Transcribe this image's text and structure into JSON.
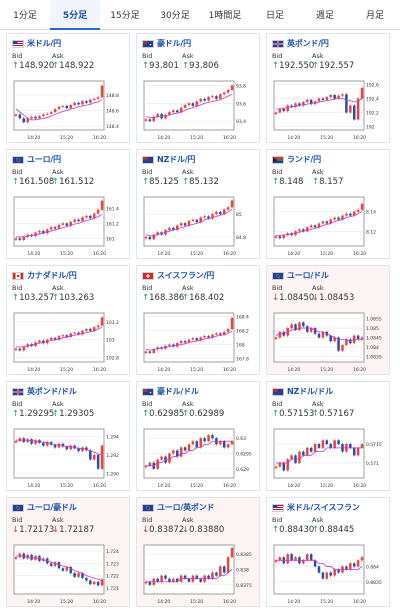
{
  "tabs": [
    "1分足",
    "5分足",
    "15分足",
    "30分足",
    "1時間足",
    "日足",
    "週足",
    "月足"
  ],
  "active_tab": 1,
  "labels": {
    "bid": "Bid",
    "ask": "Ask"
  },
  "arrows": {
    "up": "↑",
    "down": "↓"
  },
  "colors": {
    "up_candle": "#e8453c",
    "down_candle": "#2a4ea8",
    "ma_line": "#cc33cc",
    "active_tab": "#2a66d4"
  },
  "cards": [
    {
      "flag": "us",
      "pair": "米ドル/円",
      "dir": "up",
      "bid": "148.920",
      "ask": "148.922",
      "chart_data": {
        "type": "candlestick",
        "x_ticks": [
          "14:20",
          "15:20",
          "16:20"
        ],
        "y_ticks": [
          "148.8",
          "148.6",
          "148.4"
        ],
        "ylim": [
          148.35,
          148.98
        ],
        "closes": [
          148.55,
          148.5,
          148.45,
          148.5,
          148.52,
          148.5,
          148.53,
          148.55,
          148.56,
          148.58,
          148.62,
          148.65,
          148.66,
          148.63,
          148.67,
          148.7,
          148.68,
          148.72,
          148.7,
          148.74,
          148.75,
          148.77,
          148.92
        ],
        "ma": [
          148.62,
          148.58,
          148.54,
          148.5,
          148.48,
          148.48,
          148.49,
          148.5,
          148.51,
          148.53,
          148.55,
          148.57,
          148.59,
          148.6,
          148.62,
          148.63,
          148.65,
          148.66,
          148.67,
          148.68,
          148.7,
          148.71,
          148.74
        ]
      }
    },
    {
      "flag": "au",
      "pair": "豪ドル/円",
      "dir": "up",
      "bid": "93.801",
      "ask": "93.806",
      "chart_data": {
        "type": "candlestick",
        "x_ticks": [
          "14:20",
          "15:20",
          "16:20"
        ],
        "y_ticks": [
          "93.8",
          "93.6",
          "93.4"
        ],
        "ylim": [
          93.3,
          93.85
        ],
        "closes": [
          93.42,
          93.4,
          93.45,
          93.48,
          93.43,
          93.47,
          93.5,
          93.52,
          93.5,
          93.55,
          93.58,
          93.6,
          93.57,
          93.62,
          93.65,
          93.63,
          93.67,
          93.68,
          93.65,
          93.7,
          93.72,
          93.75,
          93.8
        ],
        "ma": [
          93.45,
          93.44,
          93.44,
          93.45,
          93.45,
          93.46,
          93.47,
          93.48,
          93.49,
          93.5,
          93.52,
          93.54,
          93.55,
          93.57,
          93.58,
          93.6,
          93.61,
          93.62,
          93.63,
          93.64,
          93.66,
          93.68,
          93.7
        ]
      }
    },
    {
      "flag": "gb",
      "pair": "英ポンド/円",
      "dir": "up",
      "bid": "192.550",
      "ask": "192.557",
      "chart_data": {
        "type": "candlestick",
        "x_ticks": [
          "14:20",
          "15:20",
          "16:20"
        ],
        "y_ticks": [
          "192.6",
          "192.4",
          "192.2",
          "192"
        ],
        "ylim": [
          191.95,
          192.65
        ],
        "closes": [
          192.2,
          192.25,
          192.22,
          192.3,
          192.28,
          192.33,
          192.3,
          192.35,
          192.38,
          192.32,
          192.36,
          192.4,
          192.38,
          192.42,
          192.45,
          192.4,
          192.44,
          192.46,
          192.2,
          192.3,
          192.1,
          192.4,
          192.55
        ],
        "ma": [
          192.25,
          192.25,
          192.26,
          192.27,
          192.28,
          192.29,
          192.3,
          192.31,
          192.32,
          192.33,
          192.34,
          192.35,
          192.36,
          192.37,
          192.38,
          192.39,
          192.4,
          192.4,
          192.38,
          192.37,
          192.35,
          192.36,
          192.4
        ]
      }
    },
    {
      "flag": "eu",
      "pair": "ユーロ/円",
      "dir": "up",
      "bid": "161.508",
      "ask": "161.512",
      "chart_data": {
        "type": "candlestick",
        "x_ticks": [
          "14:20",
          "15:20",
          "16:20"
        ],
        "y_ticks": [
          "161.4",
          "161.2",
          "161"
        ],
        "ylim": [
          160.9,
          161.55
        ],
        "closes": [
          161.0,
          160.98,
          161.02,
          161.05,
          161.03,
          161.08,
          161.1,
          161.07,
          161.12,
          161.15,
          161.13,
          161.18,
          161.2,
          161.17,
          161.22,
          161.25,
          161.23,
          161.28,
          161.3,
          161.27,
          161.33,
          161.38,
          161.5
        ],
        "ma": [
          161.02,
          161.02,
          161.02,
          161.03,
          161.04,
          161.05,
          161.06,
          161.07,
          161.08,
          161.1,
          161.11,
          161.13,
          161.14,
          161.16,
          161.17,
          161.19,
          161.2,
          161.22,
          161.24,
          161.25,
          161.27,
          161.29,
          161.32
        ]
      }
    },
    {
      "flag": "nz",
      "pair": "NZドル/円",
      "dir": "up",
      "bid": "85.125",
      "ask": "85.132",
      "chart_data": {
        "type": "candlestick",
        "x_ticks": [
          "14:20",
          "15:20",
          "16:20"
        ],
        "y_ticks": [
          "85",
          "84.8"
        ],
        "ylim": [
          84.72,
          85.15
        ],
        "closes": [
          84.8,
          84.78,
          84.82,
          84.84,
          84.82,
          84.86,
          84.88,
          84.86,
          84.9,
          84.92,
          84.9,
          84.94,
          84.95,
          84.93,
          84.97,
          84.98,
          84.96,
          85.0,
          85.02,
          85.0,
          85.04,
          85.06,
          85.12
        ],
        "ma": [
          84.82,
          84.81,
          84.81,
          84.82,
          84.83,
          84.84,
          84.85,
          84.86,
          84.87,
          84.88,
          84.89,
          84.9,
          84.91,
          84.92,
          84.93,
          84.95,
          84.96,
          84.97,
          84.98,
          84.99,
          85.0,
          85.02,
          85.04
        ]
      }
    },
    {
      "flag": "za",
      "pair": "ランド/円",
      "dir": "up",
      "bid": "8.148",
      "ask": "8.157",
      "chart_data": {
        "type": "candlestick",
        "x_ticks": [
          "14:20",
          "15:20",
          "16:20"
        ],
        "y_ticks": [
          "8.14",
          "8.12"
        ],
        "ylim": [
          8.105,
          8.155
        ],
        "closes": [
          8.115,
          8.113,
          8.116,
          8.118,
          8.116,
          8.12,
          8.122,
          8.12,
          8.124,
          8.126,
          8.124,
          8.128,
          8.13,
          8.128,
          8.132,
          8.134,
          8.132,
          8.136,
          8.138,
          8.136,
          8.14,
          8.142,
          8.148
        ],
        "ma": [
          8.116,
          8.116,
          8.116,
          8.117,
          8.117,
          8.118,
          8.119,
          8.12,
          8.121,
          8.122,
          8.123,
          8.124,
          8.126,
          8.127,
          8.128,
          8.13,
          8.131,
          8.132,
          8.134,
          8.135,
          8.136,
          8.138,
          8.14
        ]
      }
    },
    {
      "flag": "ca",
      "pair": "カナダドル/円",
      "dir": "up",
      "bid": "103.257",
      "ask": "103.263",
      "chart_data": {
        "type": "candlestick",
        "x_ticks": [
          "14:20",
          "15:20",
          "16:20"
        ],
        "y_ticks": [
          "103.2",
          "103",
          "102.8"
        ],
        "ylim": [
          102.75,
          103.3
        ],
        "closes": [
          102.9,
          102.88,
          102.92,
          102.95,
          102.93,
          102.97,
          102.99,
          102.96,
          103.0,
          103.02,
          103.0,
          103.04,
          103.05,
          103.03,
          103.07,
          103.08,
          103.06,
          103.1,
          103.12,
          103.1,
          103.14,
          103.16,
          103.25
        ],
        "ma": [
          102.92,
          102.92,
          102.92,
          102.93,
          102.94,
          102.95,
          102.96,
          102.97,
          102.98,
          102.99,
          103.0,
          103.01,
          103.02,
          103.03,
          103.04,
          103.05,
          103.06,
          103.07,
          103.08,
          103.09,
          103.1,
          103.12,
          103.14
        ]
      }
    },
    {
      "flag": "ch",
      "pair": "スイスフラン/円",
      "dir": "up",
      "bid": "168.386",
      "ask": "168.402",
      "chart_data": {
        "type": "candlestick",
        "x_ticks": [
          "14:20",
          "15:20",
          "16:20"
        ],
        "y_ticks": [
          "168.4",
          "168.2",
          "168",
          "167.8"
        ],
        "ylim": [
          167.75,
          168.45
        ],
        "closes": [
          167.9,
          167.88,
          167.93,
          167.96,
          167.94,
          167.98,
          168.0,
          167.97,
          168.02,
          168.05,
          168.03,
          168.07,
          168.09,
          168.06,
          168.1,
          168.12,
          168.1,
          168.14,
          168.16,
          168.14,
          168.18,
          168.22,
          168.38
        ],
        "ma": [
          167.93,
          167.92,
          167.93,
          167.94,
          167.95,
          167.96,
          167.97,
          167.98,
          167.99,
          168.0,
          168.01,
          168.03,
          168.04,
          168.05,
          168.06,
          168.08,
          168.09,
          168.1,
          168.12,
          168.13,
          168.14,
          168.16,
          168.19
        ]
      }
    },
    {
      "flag": "eu",
      "pair": "ユーロ/ドル",
      "dir": "down",
      "bid": "1.08450",
      "ask": "1.08453",
      "chart_data": {
        "type": "candlestick",
        "x_ticks": [
          "14:20",
          "15:20",
          "16:20"
        ],
        "y_ticks": [
          "1.0855",
          "1.085",
          "1.0845",
          "1.084",
          "1.0835"
        ],
        "ylim": [
          1.0832,
          1.0858
        ],
        "closes": [
          1.0845,
          1.0848,
          1.0846,
          1.085,
          1.0852,
          1.0849,
          1.0853,
          1.0851,
          1.0848,
          1.085,
          1.0847,
          1.0845,
          1.0848,
          1.0846,
          1.0843,
          1.0845,
          1.0838,
          1.0841,
          1.0844,
          1.0842,
          1.0846,
          1.0844,
          1.0845
        ],
        "ma": [
          1.0846,
          1.0847,
          1.0847,
          1.0848,
          1.0849,
          1.0849,
          1.085,
          1.085,
          1.085,
          1.085,
          1.0849,
          1.0848,
          1.0848,
          1.0847,
          1.0846,
          1.0845,
          1.0844,
          1.0844,
          1.0844,
          1.0843,
          1.0844,
          1.0844,
          1.0844
        ]
      }
    },
    {
      "flag": "gb",
      "pair": "英ポンド/ドル",
      "dir": "up",
      "bid": "1.29295",
      "ask": "1.29305",
      "chart_data": {
        "type": "candlestick",
        "x_ticks": [
          "14:20",
          "15:20",
          "16:20"
        ],
        "y_ticks": [
          "1.294",
          "1.292",
          "1.290"
        ],
        "ylim": [
          1.2895,
          1.2948
        ],
        "closes": [
          1.2935,
          1.2938,
          1.2934,
          1.2937,
          1.2932,
          1.2936,
          1.2933,
          1.293,
          1.2934,
          1.2931,
          1.2928,
          1.2932,
          1.2929,
          1.2926,
          1.293,
          1.2927,
          1.2924,
          1.2928,
          1.2925,
          1.2915,
          1.292,
          1.2905,
          1.293
        ],
        "ma": [
          1.2936,
          1.2936,
          1.2936,
          1.2936,
          1.2935,
          1.2935,
          1.2934,
          1.2934,
          1.2933,
          1.2932,
          1.2931,
          1.2931,
          1.293,
          1.2929,
          1.2929,
          1.2928,
          1.2927,
          1.2927,
          1.2926,
          1.2924,
          1.2923,
          1.2921,
          1.292
        ]
      }
    },
    {
      "flag": "au",
      "pair": "豪ドル/ドル",
      "dir": "up",
      "bid": "0.62985",
      "ask": "0.62989",
      "chart_data": {
        "type": "candlestick",
        "x_ticks": [
          "14:20",
          "15:20",
          "16:20"
        ],
        "y_ticks": [
          "0.63",
          "0.6295",
          "0.629"
        ],
        "ylim": [
          0.6287,
          0.6303
        ],
        "closes": [
          0.6291,
          0.6292,
          0.629,
          0.6293,
          0.6294,
          0.6292,
          0.6295,
          0.6296,
          0.6294,
          0.6297,
          0.6296,
          0.6298,
          0.6299,
          0.6297,
          0.63,
          0.6299,
          0.6301,
          0.63,
          0.6298,
          0.6299,
          0.6297,
          0.6298,
          0.6299
        ],
        "ma": [
          0.6291,
          0.6291,
          0.6291,
          0.6292,
          0.6292,
          0.6293,
          0.6293,
          0.6294,
          0.6294,
          0.6295,
          0.6295,
          0.6296,
          0.6296,
          0.6297,
          0.6297,
          0.6298,
          0.6298,
          0.6299,
          0.6299,
          0.6299,
          0.6299,
          0.6299,
          0.6299
        ]
      }
    },
    {
      "flag": "nz",
      "pair": "NZドル/ドル",
      "dir": "up",
      "bid": "0.57153",
      "ask": "0.57167",
      "chart_data": {
        "type": "candlestick",
        "x_ticks": [
          "14:20",
          "15:20",
          "16:20"
        ],
        "y_ticks": [
          "0.5715",
          "0.571"
        ],
        "ylim": [
          0.5706,
          0.5719
        ],
        "closes": [
          0.5709,
          0.571,
          0.5708,
          0.5711,
          0.5712,
          0.571,
          0.5713,
          0.5712,
          0.5714,
          0.5713,
          0.5715,
          0.5714,
          0.5716,
          0.5715,
          0.5714,
          0.5716,
          0.5715,
          0.5713,
          0.5715,
          0.5714,
          0.5712,
          0.5714,
          0.5715
        ],
        "ma": [
          0.571,
          0.571,
          0.571,
          0.571,
          0.5711,
          0.5711,
          0.5711,
          0.5712,
          0.5712,
          0.5712,
          0.5713,
          0.5713,
          0.5713,
          0.5714,
          0.5714,
          0.5714,
          0.5714,
          0.5714,
          0.5714,
          0.5714,
          0.5714,
          0.5714,
          0.5714
        ]
      }
    },
    {
      "flag": "eu",
      "pair": "ユーロ/豪ドル",
      "dir": "down",
      "bid": "1.72173",
      "ask": "1.72187",
      "chart_data": {
        "type": "candlestick",
        "x_ticks": [
          "14:20",
          "15:20",
          "16:20"
        ],
        "y_ticks": [
          "1.724",
          "1.723",
          "1.722",
          "1.721"
        ],
        "ylim": [
          1.7205,
          1.7245
        ],
        "closes": [
          1.7235,
          1.7238,
          1.7234,
          1.7237,
          1.7233,
          1.7236,
          1.7232,
          1.7234,
          1.723,
          1.7228,
          1.7231,
          1.7226,
          1.7224,
          1.7227,
          1.7222,
          1.7219,
          1.7222,
          1.7218,
          1.7216,
          1.7213,
          1.7215,
          1.7212,
          1.7217
        ],
        "ma": [
          1.7236,
          1.7236,
          1.7236,
          1.7235,
          1.7235,
          1.7234,
          1.7234,
          1.7233,
          1.7232,
          1.7231,
          1.723,
          1.7229,
          1.7228,
          1.7227,
          1.7226,
          1.7224,
          1.7223,
          1.7222,
          1.722,
          1.7219,
          1.7218,
          1.7217,
          1.7216
        ]
      }
    },
    {
      "flag": "eu",
      "pair": "ユーロ/英ポンド",
      "dir": "down",
      "bid": "0.83872",
      "ask": "0.83880",
      "chart_data": {
        "type": "candlestick",
        "x_ticks": [
          "14:20",
          "15:20",
          "16:20"
        ],
        "y_ticks": [
          "0.8385",
          "0.838",
          "0.8375"
        ],
        "ylim": [
          0.8372,
          0.8388
        ],
        "closes": [
          0.8376,
          0.8375,
          0.8377,
          0.8376,
          0.8378,
          0.8377,
          0.8376,
          0.8377,
          0.8376,
          0.8378,
          0.8377,
          0.8376,
          0.8378,
          0.8377,
          0.8376,
          0.8378,
          0.8377,
          0.8379,
          0.8378,
          0.8381,
          0.8379,
          0.8384,
          0.8387
        ],
        "ma": [
          0.8376,
          0.8376,
          0.8376,
          0.8376,
          0.8376,
          0.8376,
          0.8376,
          0.8376,
          0.8376,
          0.8377,
          0.8377,
          0.8377,
          0.8377,
          0.8377,
          0.8377,
          0.8377,
          0.8377,
          0.8377,
          0.8377,
          0.8378,
          0.8378,
          0.8379,
          0.838
        ]
      }
    },
    {
      "flag": "us",
      "pair": "米ドル/スイスフラン",
      "dir": "up",
      "bid": "0.88430",
      "ask": "0.88445",
      "chart_data": {
        "type": "candlestick",
        "x_ticks": [
          "14:20",
          "15:20",
          "16:20"
        ],
        "y_ticks": [
          "0.884",
          "0.8835"
        ],
        "ylim": [
          0.8831,
          0.8847
        ],
        "closes": [
          0.8842,
          0.8843,
          0.8841,
          0.8844,
          0.8842,
          0.8843,
          0.8841,
          0.8842,
          0.8844,
          0.8842,
          0.884,
          0.8838,
          0.8836,
          0.8838,
          0.8837,
          0.8839,
          0.8838,
          0.884,
          0.8839,
          0.8841,
          0.884,
          0.8842,
          0.8843
        ],
        "ma": [
          0.8842,
          0.8842,
          0.8842,
          0.8842,
          0.8842,
          0.8842,
          0.8842,
          0.8842,
          0.8842,
          0.8842,
          0.8842,
          0.8841,
          0.8841,
          0.884,
          0.884,
          0.8839,
          0.8839,
          0.8839,
          0.8839,
          0.8839,
          0.8839,
          0.8839,
          0.884
        ]
      }
    }
  ]
}
